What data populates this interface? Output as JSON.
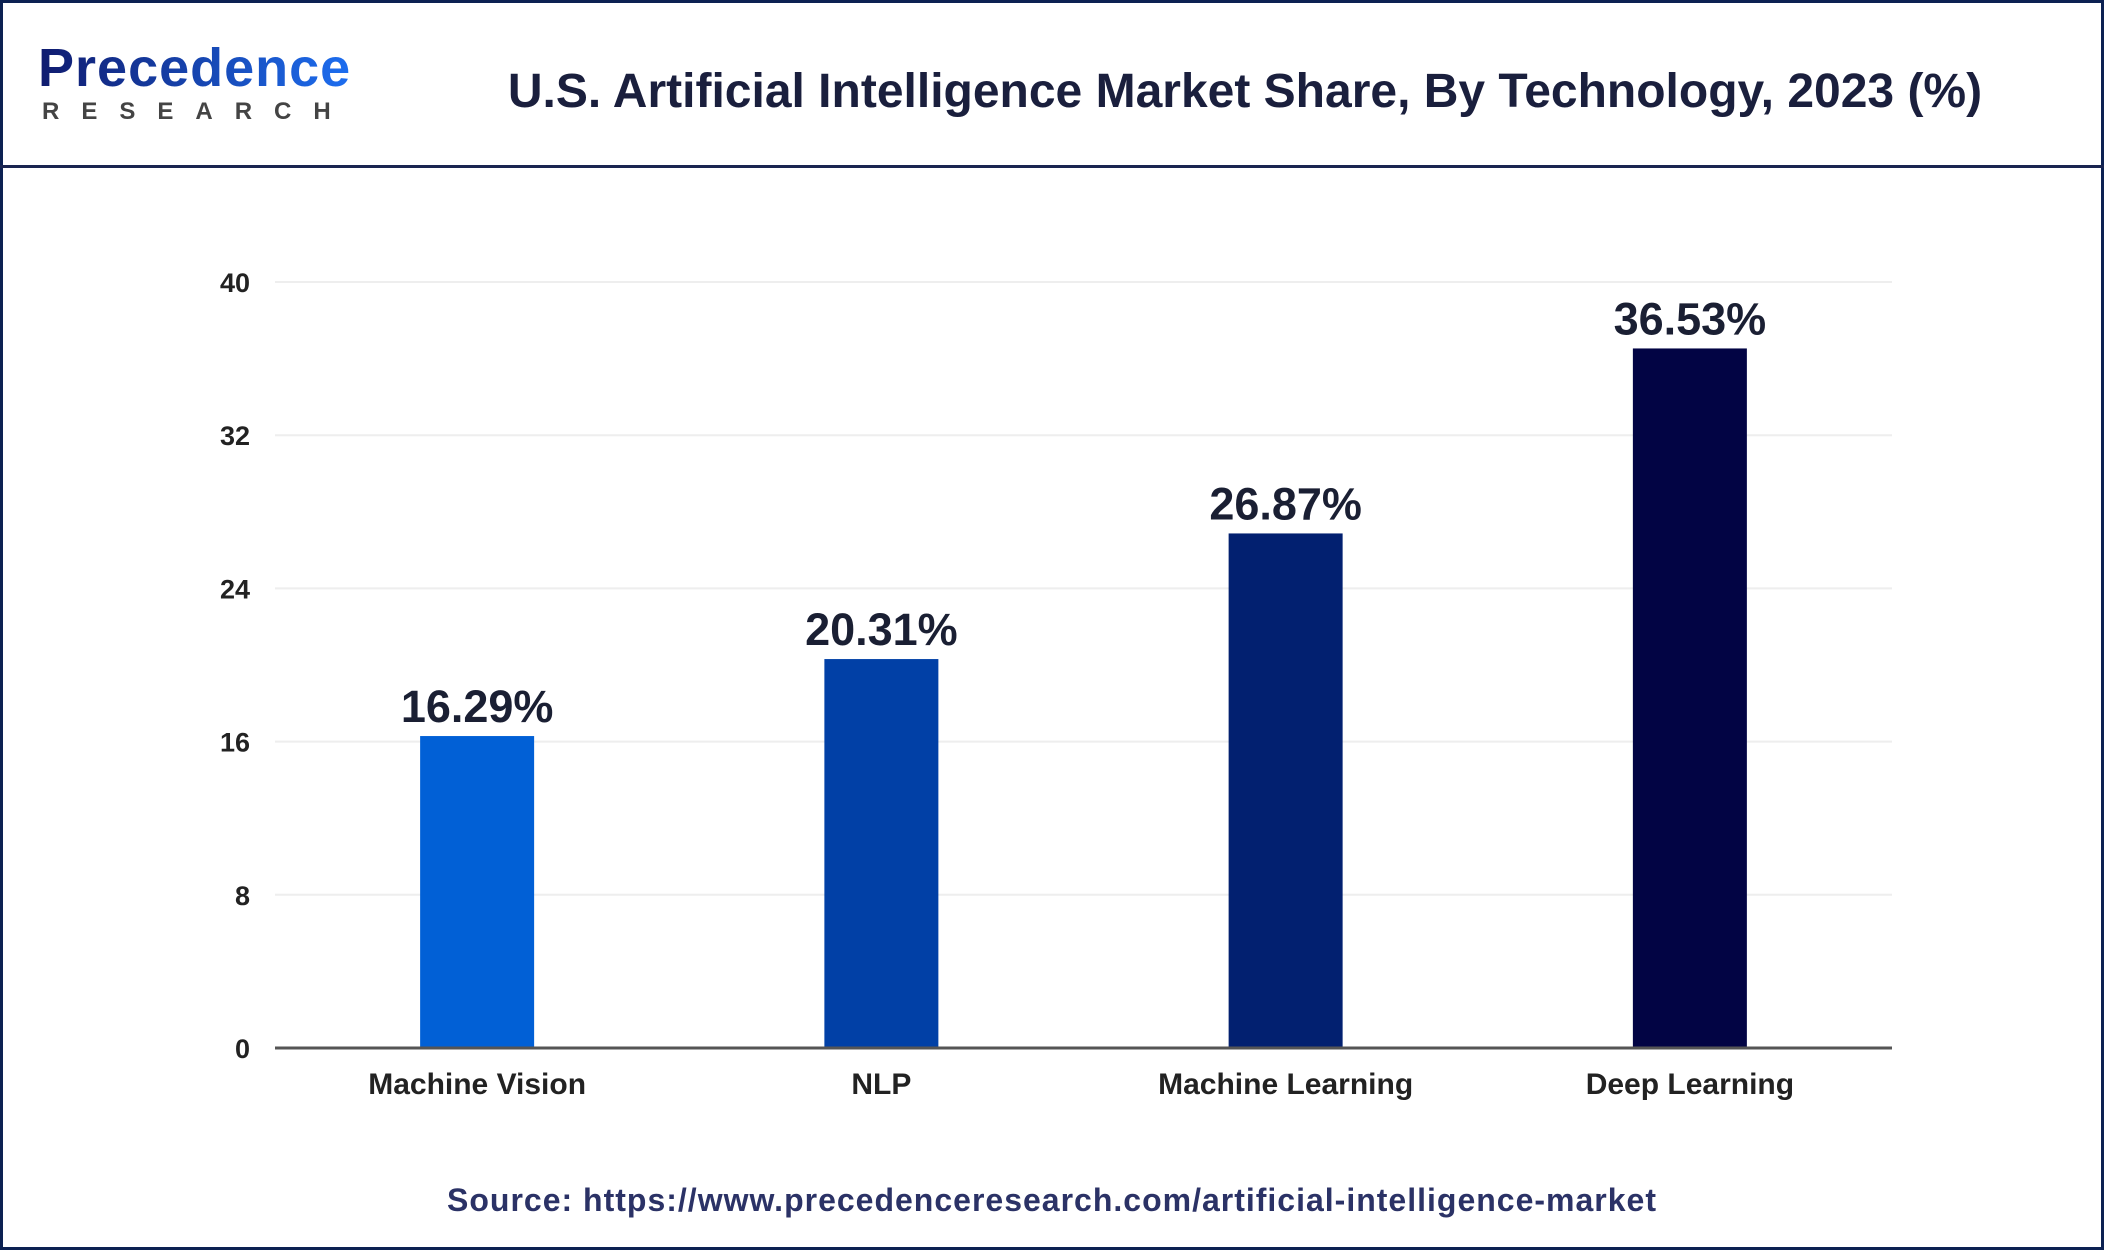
{
  "logo": {
    "name": "Precedence",
    "sub": "RESEARCH"
  },
  "title": "U.S. Artificial Intelligence Market Share, By Technology, 2023 (%)",
  "source": "Source: https://www.precedenceresearch.com/artificial-intelligence-market",
  "chart_data": {
    "type": "bar",
    "title": "U.S. Artificial Intelligence Market Share, By Technology, 2023 (%)",
    "categories": [
      "Machine Vision",
      "NLP",
      "Machine Learning",
      "Deep Learning"
    ],
    "values": [
      16.29,
      20.31,
      26.87,
      36.53
    ],
    "data_labels": [
      "16.29%",
      "20.31%",
      "26.87%",
      "36.53%"
    ],
    "colors": [
      "#0160d6",
      "#0140a6",
      "#022070",
      "#020444"
    ],
    "ylim": [
      0,
      40
    ],
    "yticks": [
      0,
      8,
      16,
      24,
      32,
      40
    ],
    "grid": true,
    "xlabel": "",
    "ylabel": ""
  }
}
